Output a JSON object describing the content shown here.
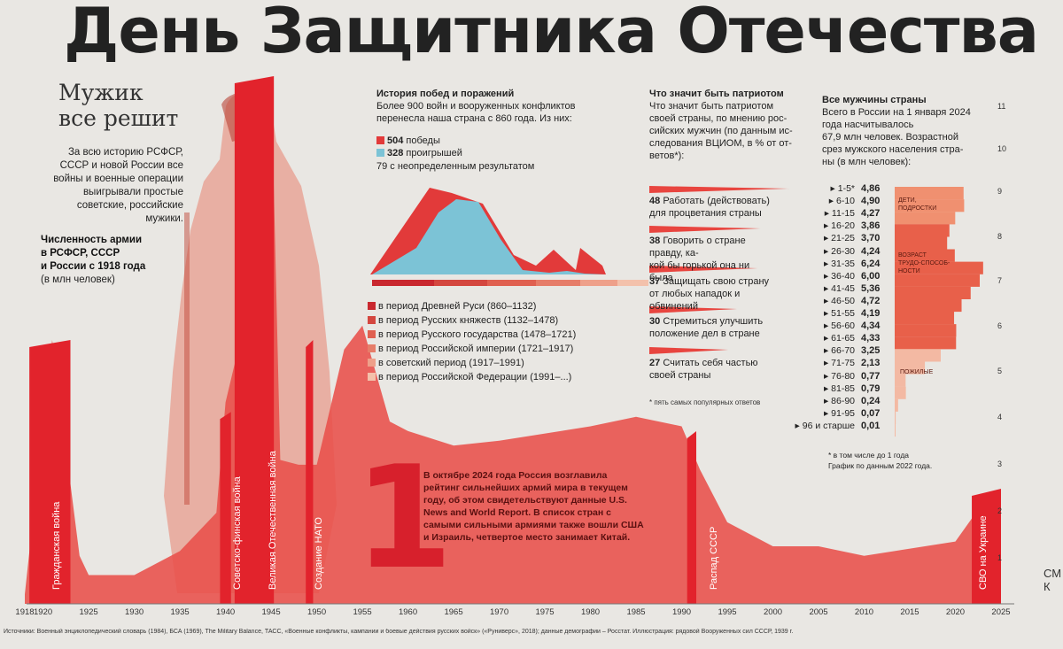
{
  "title": "День Защитника Отечества",
  "intro": {
    "heading_line1": "Мужик",
    "heading_line2": "все решит",
    "text": "За всю историю РСФСР, СССР и новой России все войны и военные операции выигрывали простые советские, российские мужики.",
    "army_heading_line1": "Численность армии",
    "army_heading_line2": "в РСФСР, СССР",
    "army_heading_line3": "и России с 1918 года",
    "army_unit": "(в млн человек)"
  },
  "history": {
    "title": "История побед и поражений",
    "text_line1": "Более 900 войн и вооруженных конфликтов",
    "text_line2": "перенесла наша страна с 860 года. Из них:",
    "wins_value": "504",
    "wins_label": "победы",
    "losses_value": "328",
    "losses_label": "проигрышей",
    "undefined_text": "79 с неопределенным результатом",
    "colors": {
      "wins": "#e23a3a",
      "losses": "#7cc3d6"
    },
    "periods": [
      {
        "label": "в период Древней Руси (860–1132)",
        "color": "#c9282f"
      },
      {
        "label": "в период Русских княжеств (1132–1478)",
        "color": "#d4473f"
      },
      {
        "label": "в период Русского государства (1478–1721)",
        "color": "#e06050"
      },
      {
        "label": "в период Российской империи (1721–1917)",
        "color": "#e67d69"
      },
      {
        "label": "в советский период (1917–1991)",
        "color": "#eea08a"
      },
      {
        "label": "в период Российской Федерации (1991–...)",
        "color": "#f3c1ab"
      }
    ]
  },
  "patriot": {
    "title": "Что значит быть патриотом",
    "text_line1": "Что значит быть патриотом",
    "text_line2": "своей страны, по мнению рос-",
    "text_line3": "сийских мужчин (по данным ис-",
    "text_line4": "следования ВЦИОМ, в % от от-",
    "text_line5": "ветов*):",
    "items": [
      {
        "value": "48",
        "line1": "Работать (действовать)",
        "line2": "для процветания страны",
        "pct": 48
      },
      {
        "value": "38",
        "line1": "Говорить о стране правду, ка-",
        "line2": "кой бы горькой она ни была",
        "pct": 38
      },
      {
        "value": "37",
        "line1": "Защищать свою страну",
        "line2": "от любых нападок и обвинений",
        "pct": 37
      },
      {
        "value": "30",
        "line1": "Стремиться улучшить",
        "line2": "положение дел в стране",
        "pct": 30
      },
      {
        "value": "27",
        "line1": "Считать себя частью",
        "line2": "своей страны",
        "pct": 27
      }
    ],
    "footnote": "* пять самых популярных ответов"
  },
  "men": {
    "title": "Все мужчины страны",
    "text_line1": "Всего в России на 1 января 2024",
    "text_line2": "года насчитывалось",
    "text_line3": "67,9 млн человек. Возрастной",
    "text_line4": "срез мужского населения стра-",
    "text_line5": "ны (в млн человек):",
    "ages": [
      {
        "label": "▸ 1-5*",
        "value": "4,86"
      },
      {
        "label": "▸ 6-10",
        "value": "4,90"
      },
      {
        "label": "▸ 11-15",
        "value": "4,27"
      },
      {
        "label": "▸ 16-20",
        "value": "3,86"
      },
      {
        "label": "▸ 21-25",
        "value": "3,70"
      },
      {
        "label": "▸ 26-30",
        "value": "4,24"
      },
      {
        "label": "▸ 31-35",
        "value": "6,24"
      },
      {
        "label": "▸ 36-40",
        "value": "6,00"
      },
      {
        "label": "▸ 41-45",
        "value": "5,36"
      },
      {
        "label": "▸ 46-50",
        "value": "4,72"
      },
      {
        "label": "▸ 51-55",
        "value": "4,19"
      },
      {
        "label": "▸ 56-60",
        "value": "4,34"
      },
      {
        "label": "▸ 61-65",
        "value": "4,33"
      },
      {
        "label": "▸ 66-70",
        "value": "3,25"
      },
      {
        "label": "▸ 71-75",
        "value": "2,13"
      },
      {
        "label": "▸ 76-80",
        "value": "0,77"
      },
      {
        "label": "▸ 81-85",
        "value": "0,79"
      },
      {
        "label": "▸ 86-90",
        "value": "0,24"
      },
      {
        "label": "▸ 91-95",
        "value": "0,07"
      },
      {
        "label": "▸ 96 и старше",
        "value": "0,01"
      }
    ],
    "group_children_line1": "ДЕТИ,",
    "group_children_line2": "ПОДРОСТКИ",
    "group_working_line1": "ВОЗРАСТ",
    "group_working_line2": "ТРУДО-СПОСОБ-",
    "group_working_line3": "НОСТИ",
    "group_elderly": "ПОЖИЛЫЕ",
    "footnote_line1": "* в том числе до 1 года",
    "footnote_line2": "График по данным 2022 года."
  },
  "rank": {
    "big_number": "1",
    "text": "В октябре 2024 года Россия возглавила рейтинг сильнейших армий мира в текущем году, об этом свидетельствуют данные U.S. News and World Report. В список стран с самыми сильными армиями также вошли США и Израиль, четвертое место занимает Китай."
  },
  "events": {
    "civil_war": "Гражданская война",
    "winter_war": "Советско-финская война",
    "ww2": "Великая Отечественная война",
    "nato": "Создание НАТО",
    "ussr_collapse": "Распад СССР",
    "svo": "СВО на Украине"
  },
  "chart_data": {
    "type": "area",
    "title": "Численность армии в РСФСР, СССР и России с 1918 года",
    "ylabel": "(в млн человек)",
    "x_ticks": [
      "1918",
      "1920",
      "1925",
      "1930",
      "1935",
      "1940",
      "1945",
      "1950",
      "1955",
      "1960",
      "1965",
      "1970",
      "1975",
      "1980",
      "1985",
      "1990",
      "1995",
      "2000",
      "2005",
      "2010",
      "2015",
      "2020",
      "2025"
    ],
    "y_ticks": [
      "1",
      "2",
      "3",
      "4",
      "5",
      "6",
      "7",
      "8",
      "9",
      "10",
      "11"
    ],
    "xlim": [
      1918,
      2025
    ],
    "ylim": [
      0,
      11
    ],
    "x": [
      1918,
      1921,
      1924,
      1925,
      1930,
      1935,
      1939,
      1940,
      1941,
      1945,
      1946,
      1948,
      1950,
      1953,
      1955,
      1958,
      1960,
      1965,
      1970,
      1980,
      1985,
      1990,
      1992,
      1995,
      2000,
      2005,
      2010,
      2020,
      2023,
      2025
    ],
    "y": [
      0.2,
      5.5,
      1.0,
      0.6,
      0.6,
      1.1,
      1.9,
      4.2,
      5.0,
      11.0,
      3.0,
      2.9,
      2.9,
      5.3,
      5.8,
      3.8,
      3.6,
      3.3,
      3.4,
      3.7,
      3.9,
      3.7,
      2.8,
      1.7,
      1.2,
      1.2,
      1.0,
      1.3,
      2.1,
      2.1
    ]
  },
  "sources": "Источники: Военный энциклопедический словарь (1984), БСА (1969), The Military Balance, ТАСС, «Военные конфликты, кампании и боевые действия русских войск» («Руниверс», 2018); данные демографии – Росстат. Иллюстрация: рядовой Вооруженных сил СССР, 1939 г.",
  "cmk": "СМ К"
}
